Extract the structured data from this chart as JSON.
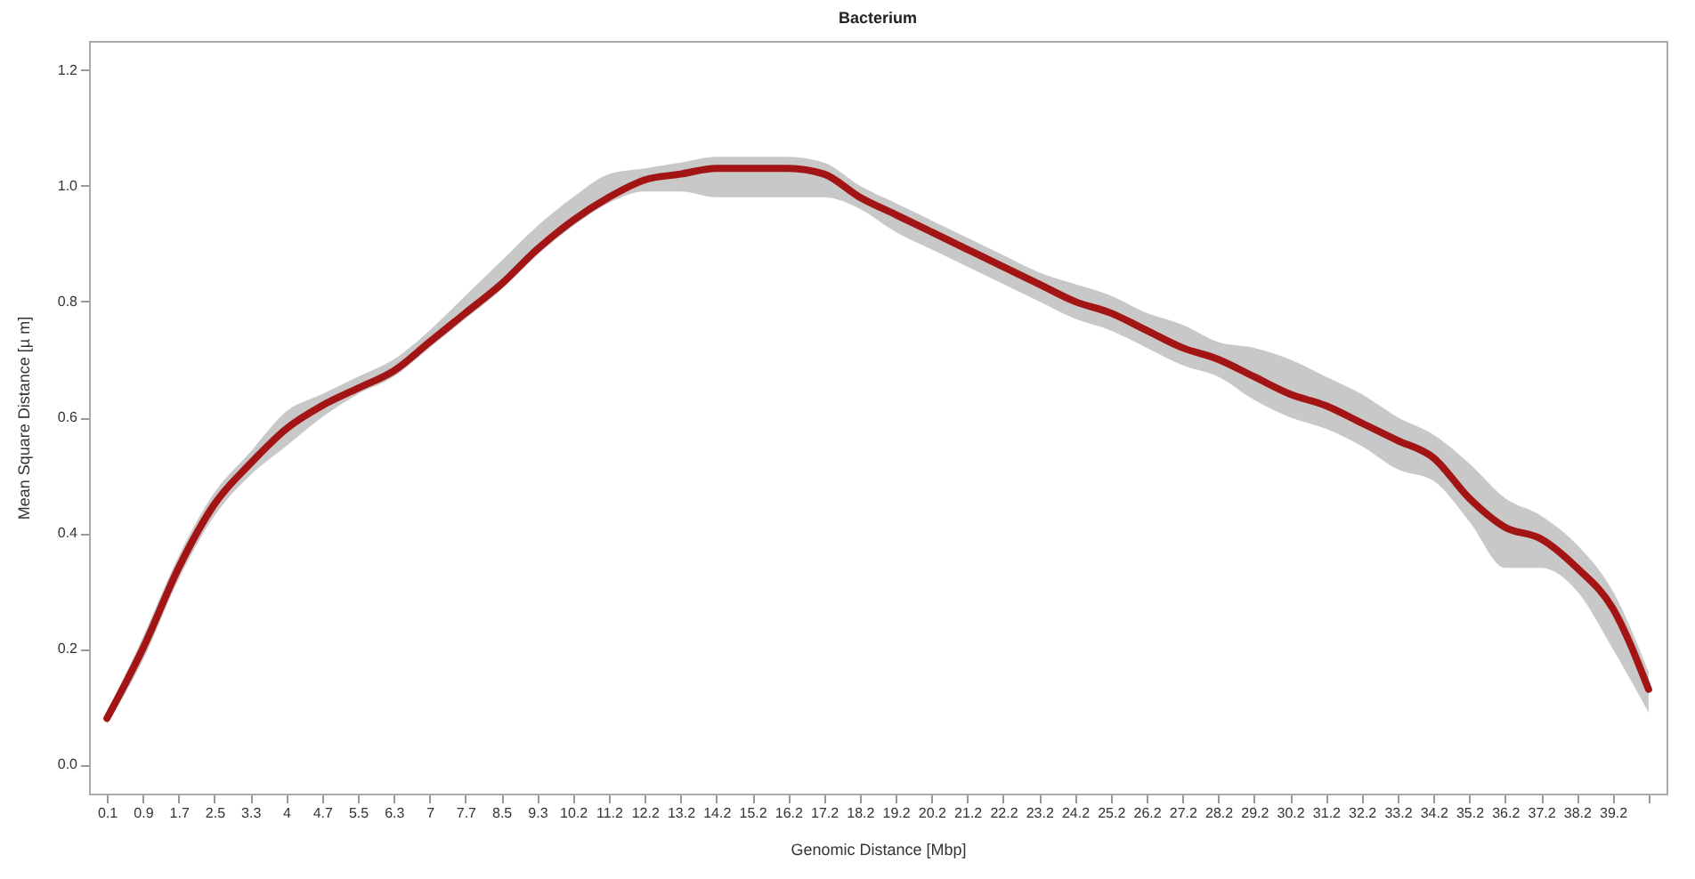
{
  "chart_data": {
    "type": "line",
    "title": "Bacterium",
    "xlabel": "Genomic Distance [Mbp]",
    "ylabel": "Mean Square Distance [µ m]",
    "categories": [
      "0.1",
      "0.9",
      "1.7",
      "2.5",
      "3.3",
      "4",
      "4.7",
      "5.5",
      "6.3",
      "7",
      "7.7",
      "8.5",
      "9.3",
      "10.2",
      "11.2",
      "12.2",
      "13.2",
      "14.2",
      "15.2",
      "16.2",
      "17.2",
      "18.2",
      "19.2",
      "20.2",
      "21.2",
      "22.2",
      "23.2",
      "24.2",
      "25.2",
      "26.2",
      "27.2",
      "28.2",
      "29.2",
      "30.2",
      "31.2",
      "32.2",
      "33.2",
      "34.2",
      "35.2",
      "36.2",
      "37.2",
      "38.2",
      "39.2",
      null
    ],
    "series": [
      {
        "color": "#a31515",
        "values": [
          0.08,
          0.2,
          0.34,
          0.45,
          0.52,
          0.58,
          0.62,
          0.65,
          0.68,
          0.73,
          0.78,
          0.83,
          0.89,
          0.94,
          0.98,
          1.01,
          1.02,
          1.03,
          1.03,
          1.03,
          1.02,
          0.98,
          0.95,
          0.92,
          0.89,
          0.86,
          0.83,
          0.8,
          0.78,
          0.75,
          0.72,
          0.7,
          0.67,
          0.64,
          0.62,
          0.59,
          0.56,
          0.53,
          0.46,
          0.41,
          0.39,
          0.34,
          0.27,
          0.13
        ],
        "lower": [
          0.07,
          0.18,
          0.32,
          0.43,
          0.5,
          0.55,
          0.6,
          0.64,
          0.67,
          0.72,
          0.77,
          0.82,
          0.88,
          0.93,
          0.97,
          0.99,
          0.99,
          0.98,
          0.98,
          0.98,
          0.98,
          0.96,
          0.92,
          0.89,
          0.86,
          0.83,
          0.8,
          0.77,
          0.75,
          0.72,
          0.69,
          0.67,
          0.63,
          0.6,
          0.58,
          0.55,
          0.51,
          0.49,
          0.42,
          0.34,
          0.34,
          0.3,
          0.2,
          0.09
        ],
        "upper": [
          0.09,
          0.22,
          0.36,
          0.47,
          0.54,
          0.61,
          0.64,
          0.67,
          0.7,
          0.75,
          0.81,
          0.87,
          0.93,
          0.98,
          1.02,
          1.03,
          1.04,
          1.05,
          1.05,
          1.05,
          1.04,
          1.0,
          0.97,
          0.94,
          0.91,
          0.88,
          0.85,
          0.83,
          0.81,
          0.78,
          0.76,
          0.73,
          0.72,
          0.7,
          0.67,
          0.64,
          0.6,
          0.57,
          0.52,
          0.46,
          0.43,
          0.38,
          0.3,
          0.16
        ]
      }
    ],
    "ylim": [
      -0.05,
      1.25
    ],
    "yticks": [
      {
        "value": 0,
        "label": "0.0"
      },
      {
        "value": 0.2,
        "label": "0.2"
      },
      {
        "value": 0.4,
        "label": "0.4"
      },
      {
        "value": 0.6,
        "label": "0.6"
      },
      {
        "value": 0.8,
        "label": "0.8"
      },
      {
        "value": 1,
        "label": "1.0"
      },
      {
        "value": 1.2,
        "label": "1.2"
      }
    ],
    "grid": false,
    "marker": "none",
    "line_style": "solid"
  }
}
